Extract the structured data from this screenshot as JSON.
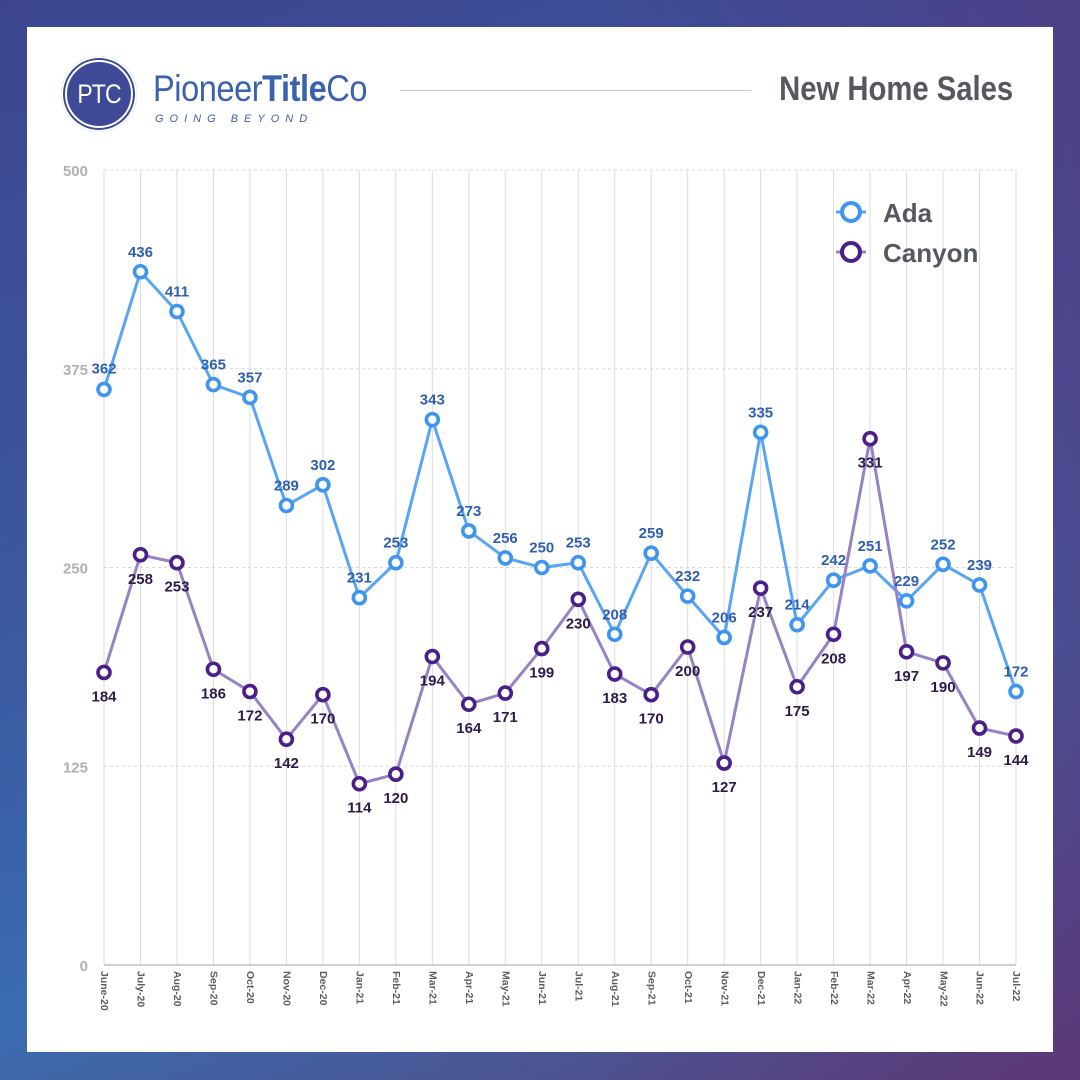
{
  "header": {
    "logo_mark": "PTC",
    "logo_name_regular": "Pioneer",
    "logo_name_bold": "Title",
    "logo_name_end": "Co",
    "logo_tagline": "GOING BEYOND",
    "title": "New Home Sales"
  },
  "colors": {
    "ada_line": "#5aa5f2",
    "ada_marker": "#3d95f0",
    "ada_label": "#2f5fb0",
    "canyon_line": "#9682c4",
    "canyon_marker": "#4a1f8a",
    "canyon_label": "#2e1b4a"
  },
  "chart_data": {
    "type": "line",
    "title": "New Home Sales",
    "xlabel": "",
    "ylabel": "",
    "ylim": [
      0,
      500
    ],
    "yticks": [
      0,
      125,
      250,
      375,
      500
    ],
    "grid": true,
    "legend_position": "top-right",
    "categories": [
      "June-20",
      "July-20",
      "Aug-20",
      "Sep-20",
      "Oct-20",
      "Nov-20",
      "Dec-20",
      "Jan-21",
      "Feb-21",
      "Mar-21",
      "Apr-21",
      "May-21",
      "Jun-21",
      "Jul-21",
      "Aug-21",
      "Sep-21",
      "Oct-21",
      "Nov-21",
      "Dec-21",
      "Jan-22",
      "Feb-22",
      "Mar-22",
      "Apr-22",
      "May-22",
      "Jun-22",
      "Jul-22"
    ],
    "series": [
      {
        "name": "Ada",
        "values": [
          362,
          436,
          411,
          365,
          357,
          289,
          302,
          231,
          253,
          343,
          273,
          256,
          250,
          253,
          208,
          259,
          232,
          206,
          335,
          214,
          242,
          251,
          229,
          252,
          239,
          172
        ],
        "label_position": "above"
      },
      {
        "name": "Canyon",
        "values": [
          184,
          258,
          253,
          186,
          172,
          142,
          170,
          114,
          120,
          194,
          164,
          171,
          199,
          230,
          183,
          170,
          200,
          127,
          237,
          175,
          208,
          331,
          197,
          190,
          149,
          144
        ],
        "label_position": "below"
      }
    ]
  }
}
